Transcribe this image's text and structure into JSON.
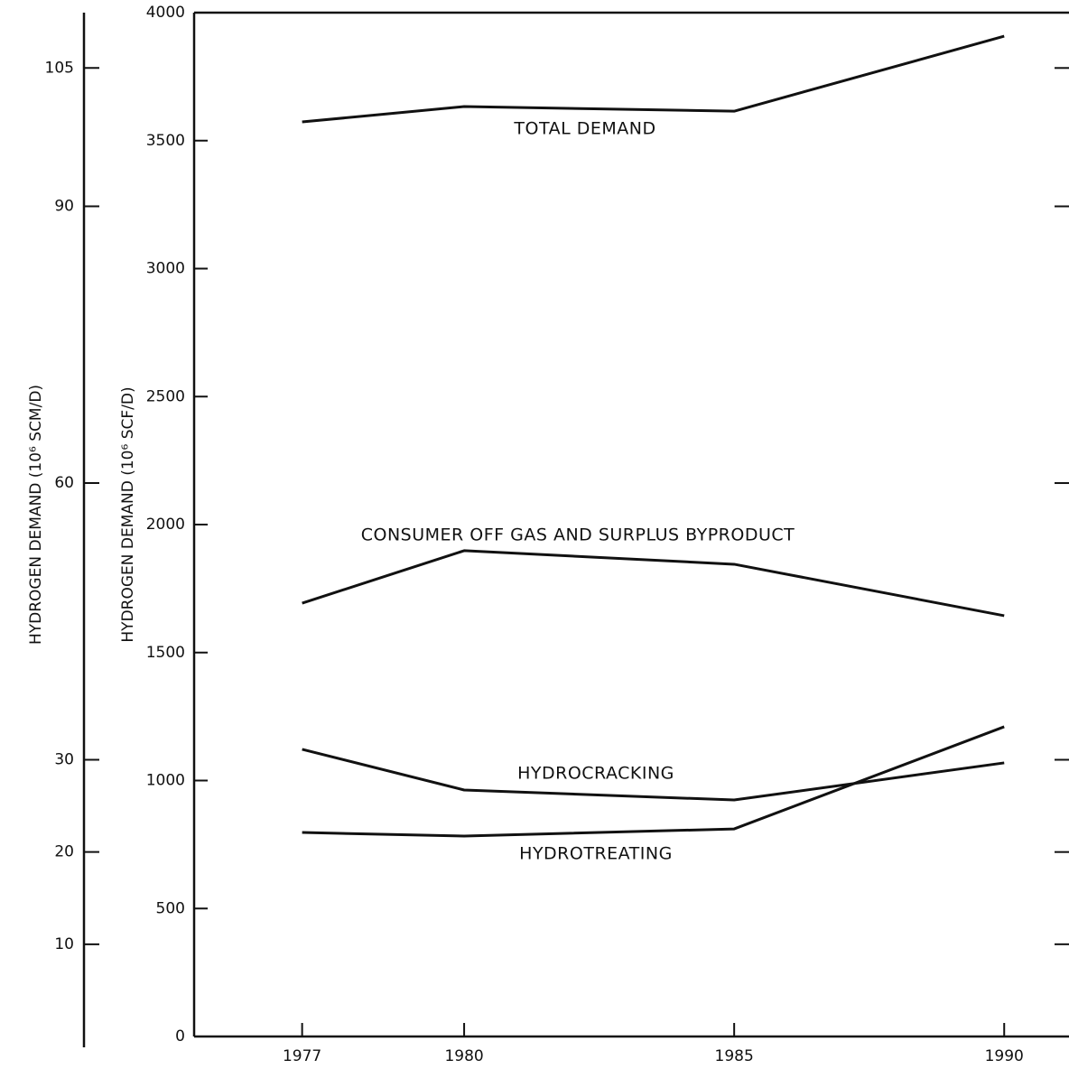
{
  "chart_data": {
    "type": "line",
    "x": [
      1977,
      1980,
      1985,
      1990
    ],
    "xlim": [
      1975,
      1991.2
    ],
    "xticks": [
      1977,
      1980,
      1985,
      1990
    ],
    "ylabel": "HYDROGEN DEMAND (10⁶ SCF/D)",
    "ylim": [
      0,
      4000
    ],
    "yticks": [
      0,
      500,
      1000,
      1500,
      2000,
      2500,
      3000,
      3500,
      4000
    ],
    "y2label": "HYDROGEN DEMAND (10⁶ SCM/D)",
    "y2lim": [
      0,
      111
    ],
    "y2ticks": [
      10,
      20,
      30,
      60,
      90,
      105
    ],
    "series": [
      {
        "name": "TOTAL DEMAND",
        "color": "#111111",
        "values": [
          3573,
          3633,
          3615,
          3908
        ]
      },
      {
        "name": "CONSUMER OFF GAS AND SURPLUS BYPRODUCT",
        "color": "#111111",
        "values": [
          1693,
          1898,
          1845,
          1644
        ]
      },
      {
        "name": "HYDROCRACKING",
        "color": "#111111",
        "values": [
          1122,
          963,
          924,
          1069
        ]
      },
      {
        "name": "HYDROTREATING",
        "color": "#111111",
        "values": [
          797,
          783,
          811,
          1210
        ]
      }
    ]
  }
}
